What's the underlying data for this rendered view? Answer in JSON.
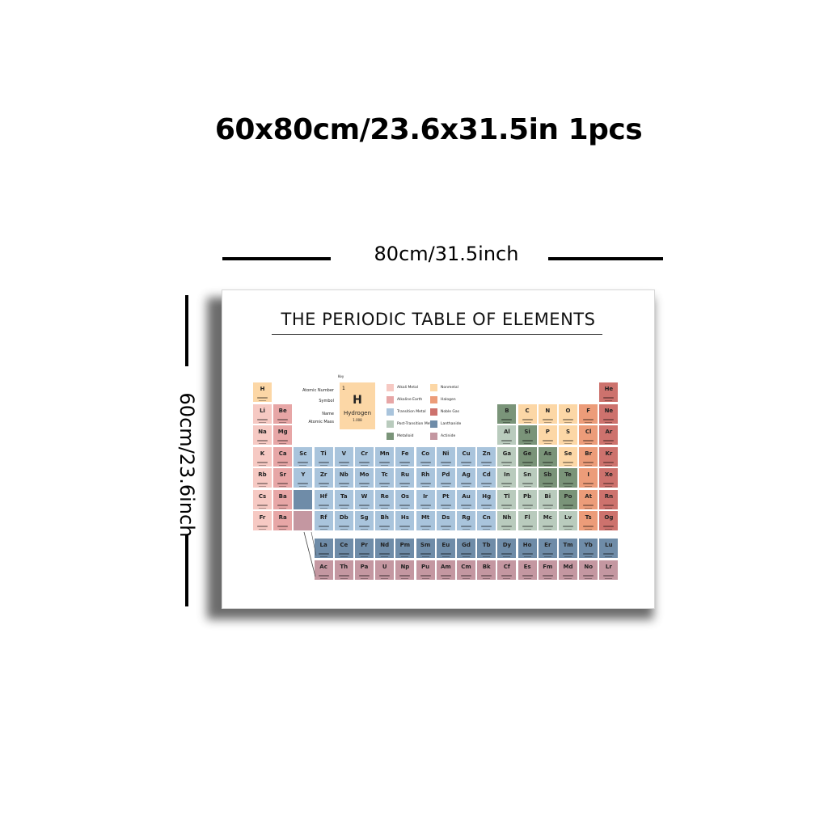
{
  "headline": "60x80cm/23.6x31.5in 1pcs",
  "width_label": "80cm/31.5inch",
  "height_label": "60cm/23.6inch",
  "poster": {
    "title": "THE PERIODIC TABLE OF ELEMENTS",
    "key": {
      "title": "Key",
      "labels": [
        "Atomic Number",
        "Symbol",
        "Name",
        "Atomic Mass"
      ],
      "number": "1",
      "symbol": "H",
      "name": "Hydrogen",
      "mass": "1.008"
    },
    "legend": [
      {
        "label": "Alkali Metal",
        "color": "#f6c9c3"
      },
      {
        "label": "Nonmetal",
        "color": "#fcd7a6"
      },
      {
        "label": "Alkaline Earth",
        "color": "#e7a6a6"
      },
      {
        "label": "Halogen",
        "color": "#ec9c79"
      },
      {
        "label": "Transition Metal",
        "color": "#a9c4dc"
      },
      {
        "label": "Noble Gas",
        "color": "#cd726d"
      },
      {
        "label": "Post-Transition Metal",
        "color": "#b9cbbd"
      },
      {
        "label": "Lanthanide",
        "color": "#6f8ca8"
      },
      {
        "label": "Metalloid",
        "color": "#7a9479"
      },
      {
        "label": "Actinide",
        "color": "#c497a1"
      }
    ],
    "elements": [
      {
        "s": "H",
        "p": 1,
        "g": 1,
        "c": "nm"
      },
      {
        "s": "He",
        "p": 1,
        "g": 18,
        "c": "ng"
      },
      {
        "s": "Li",
        "p": 2,
        "g": 1,
        "c": "al"
      },
      {
        "s": "Be",
        "p": 2,
        "g": 2,
        "c": "ae"
      },
      {
        "s": "B",
        "p": 2,
        "g": 13,
        "c": "md"
      },
      {
        "s": "C",
        "p": 2,
        "g": 14,
        "c": "nm"
      },
      {
        "s": "N",
        "p": 2,
        "g": 15,
        "c": "nm"
      },
      {
        "s": "O",
        "p": 2,
        "g": 16,
        "c": "nm"
      },
      {
        "s": "F",
        "p": 2,
        "g": 17,
        "c": "ha"
      },
      {
        "s": "Ne",
        "p": 2,
        "g": 18,
        "c": "ng"
      },
      {
        "s": "Na",
        "p": 3,
        "g": 1,
        "c": "al"
      },
      {
        "s": "Mg",
        "p": 3,
        "g": 2,
        "c": "ae"
      },
      {
        "s": "Al",
        "p": 3,
        "g": 13,
        "c": "pt"
      },
      {
        "s": "Si",
        "p": 3,
        "g": 14,
        "c": "md"
      },
      {
        "s": "P",
        "p": 3,
        "g": 15,
        "c": "nm"
      },
      {
        "s": "S",
        "p": 3,
        "g": 16,
        "c": "nm"
      },
      {
        "s": "Cl",
        "p": 3,
        "g": 17,
        "c": "ha"
      },
      {
        "s": "Ar",
        "p": 3,
        "g": 18,
        "c": "ng"
      },
      {
        "s": "K",
        "p": 4,
        "g": 1,
        "c": "al"
      },
      {
        "s": "Ca",
        "p": 4,
        "g": 2,
        "c": "ae"
      },
      {
        "s": "Sc",
        "p": 4,
        "g": 3,
        "c": "tm"
      },
      {
        "s": "Ti",
        "p": 4,
        "g": 4,
        "c": "tm"
      },
      {
        "s": "V",
        "p": 4,
        "g": 5,
        "c": "tm"
      },
      {
        "s": "Cr",
        "p": 4,
        "g": 6,
        "c": "tm"
      },
      {
        "s": "Mn",
        "p": 4,
        "g": 7,
        "c": "tm"
      },
      {
        "s": "Fe",
        "p": 4,
        "g": 8,
        "c": "tm"
      },
      {
        "s": "Co",
        "p": 4,
        "g": 9,
        "c": "tm"
      },
      {
        "s": "Ni",
        "p": 4,
        "g": 10,
        "c": "tm"
      },
      {
        "s": "Cu",
        "p": 4,
        "g": 11,
        "c": "tm"
      },
      {
        "s": "Zn",
        "p": 4,
        "g": 12,
        "c": "tm"
      },
      {
        "s": "Ga",
        "p": 4,
        "g": 13,
        "c": "pt"
      },
      {
        "s": "Ge",
        "p": 4,
        "g": 14,
        "c": "md"
      },
      {
        "s": "As",
        "p": 4,
        "g": 15,
        "c": "md"
      },
      {
        "s": "Se",
        "p": 4,
        "g": 16,
        "c": "nm"
      },
      {
        "s": "Br",
        "p": 4,
        "g": 17,
        "c": "ha"
      },
      {
        "s": "Kr",
        "p": 4,
        "g": 18,
        "c": "ng"
      },
      {
        "s": "Rb",
        "p": 5,
        "g": 1,
        "c": "al"
      },
      {
        "s": "Sr",
        "p": 5,
        "g": 2,
        "c": "ae"
      },
      {
        "s": "Y",
        "p": 5,
        "g": 3,
        "c": "tm"
      },
      {
        "s": "Zr",
        "p": 5,
        "g": 4,
        "c": "tm"
      },
      {
        "s": "Nb",
        "p": 5,
        "g": 5,
        "c": "tm"
      },
      {
        "s": "Mo",
        "p": 5,
        "g": 6,
        "c": "tm"
      },
      {
        "s": "Tc",
        "p": 5,
        "g": 7,
        "c": "tm"
      },
      {
        "s": "Ru",
        "p": 5,
        "g": 8,
        "c": "tm"
      },
      {
        "s": "Rh",
        "p": 5,
        "g": 9,
        "c": "tm"
      },
      {
        "s": "Pd",
        "p": 5,
        "g": 10,
        "c": "tm"
      },
      {
        "s": "Ag",
        "p": 5,
        "g": 11,
        "c": "tm"
      },
      {
        "s": "Cd",
        "p": 5,
        "g": 12,
        "c": "tm"
      },
      {
        "s": "In",
        "p": 5,
        "g": 13,
        "c": "pt"
      },
      {
        "s": "Sn",
        "p": 5,
        "g": 14,
        "c": "pt"
      },
      {
        "s": "Sb",
        "p": 5,
        "g": 15,
        "c": "md"
      },
      {
        "s": "Te",
        "p": 5,
        "g": 16,
        "c": "md"
      },
      {
        "s": "I",
        "p": 5,
        "g": 17,
        "c": "ha"
      },
      {
        "s": "Xe",
        "p": 5,
        "g": 18,
        "c": "ng"
      },
      {
        "s": "Cs",
        "p": 6,
        "g": 1,
        "c": "al"
      },
      {
        "s": "Ba",
        "p": 6,
        "g": 2,
        "c": "ae"
      },
      {
        "s": "",
        "p": 6,
        "g": 3,
        "c": "ln"
      },
      {
        "s": "Hf",
        "p": 6,
        "g": 4,
        "c": "tm"
      },
      {
        "s": "Ta",
        "p": 6,
        "g": 5,
        "c": "tm"
      },
      {
        "s": "W",
        "p": 6,
        "g": 6,
        "c": "tm"
      },
      {
        "s": "Re",
        "p": 6,
        "g": 7,
        "c": "tm"
      },
      {
        "s": "Os",
        "p": 6,
        "g": 8,
        "c": "tm"
      },
      {
        "s": "Ir",
        "p": 6,
        "g": 9,
        "c": "tm"
      },
      {
        "s": "Pt",
        "p": 6,
        "g": 10,
        "c": "tm"
      },
      {
        "s": "Au",
        "p": 6,
        "g": 11,
        "c": "tm"
      },
      {
        "s": "Hg",
        "p": 6,
        "g": 12,
        "c": "tm"
      },
      {
        "s": "Tl",
        "p": 6,
        "g": 13,
        "c": "pt"
      },
      {
        "s": "Pb",
        "p": 6,
        "g": 14,
        "c": "pt"
      },
      {
        "s": "Bi",
        "p": 6,
        "g": 15,
        "c": "pt"
      },
      {
        "s": "Po",
        "p": 6,
        "g": 16,
        "c": "md"
      },
      {
        "s": "At",
        "p": 6,
        "g": 17,
        "c": "ha"
      },
      {
        "s": "Rn",
        "p": 6,
        "g": 18,
        "c": "ng"
      },
      {
        "s": "Fr",
        "p": 7,
        "g": 1,
        "c": "al"
      },
      {
        "s": "Ra",
        "p": 7,
        "g": 2,
        "c": "ae"
      },
      {
        "s": "",
        "p": 7,
        "g": 3,
        "c": "ac"
      },
      {
        "s": "Rf",
        "p": 7,
        "g": 4,
        "c": "tm"
      },
      {
        "s": "Db",
        "p": 7,
        "g": 5,
        "c": "tm"
      },
      {
        "s": "Sg",
        "p": 7,
        "g": 6,
        "c": "tm"
      },
      {
        "s": "Bh",
        "p": 7,
        "g": 7,
        "c": "tm"
      },
      {
        "s": "Hs",
        "p": 7,
        "g": 8,
        "c": "tm"
      },
      {
        "s": "Mt",
        "p": 7,
        "g": 9,
        "c": "tm"
      },
      {
        "s": "Ds",
        "p": 7,
        "g": 10,
        "c": "tm"
      },
      {
        "s": "Rg",
        "p": 7,
        "g": 11,
        "c": "tm"
      },
      {
        "s": "Cn",
        "p": 7,
        "g": 12,
        "c": "tm"
      },
      {
        "s": "Nh",
        "p": 7,
        "g": 13,
        "c": "pt"
      },
      {
        "s": "Fl",
        "p": 7,
        "g": 14,
        "c": "pt"
      },
      {
        "s": "Mc",
        "p": 7,
        "g": 15,
        "c": "pt"
      },
      {
        "s": "Lv",
        "p": 7,
        "g": 16,
        "c": "pt"
      },
      {
        "s": "Ts",
        "p": 7,
        "g": 17,
        "c": "ha"
      },
      {
        "s": "Og",
        "p": 7,
        "g": 18,
        "c": "ng"
      }
    ],
    "lanthanides": [
      "La",
      "Ce",
      "Pr",
      "Nd",
      "Pm",
      "Sm",
      "Eu",
      "Gd",
      "Tb",
      "Dy",
      "Ho",
      "Er",
      "Tm",
      "Yb",
      "Lu"
    ],
    "actinides": [
      "Ac",
      "Th",
      "Pa",
      "U",
      "Np",
      "Pu",
      "Am",
      "Cm",
      "Bk",
      "Cf",
      "Es",
      "Fm",
      "Md",
      "No",
      "Lr"
    ],
    "category_colors": {
      "nm": "#fcd7a6",
      "ng": "#cd726d",
      "al": "#f6c9c3",
      "ae": "#e7a6a6",
      "md": "#7a9479",
      "ha": "#ec9c79",
      "pt": "#b9cbbd",
      "tm": "#a9c4dc",
      "ln": "#6f8ca8",
      "ac": "#c497a1"
    }
  }
}
